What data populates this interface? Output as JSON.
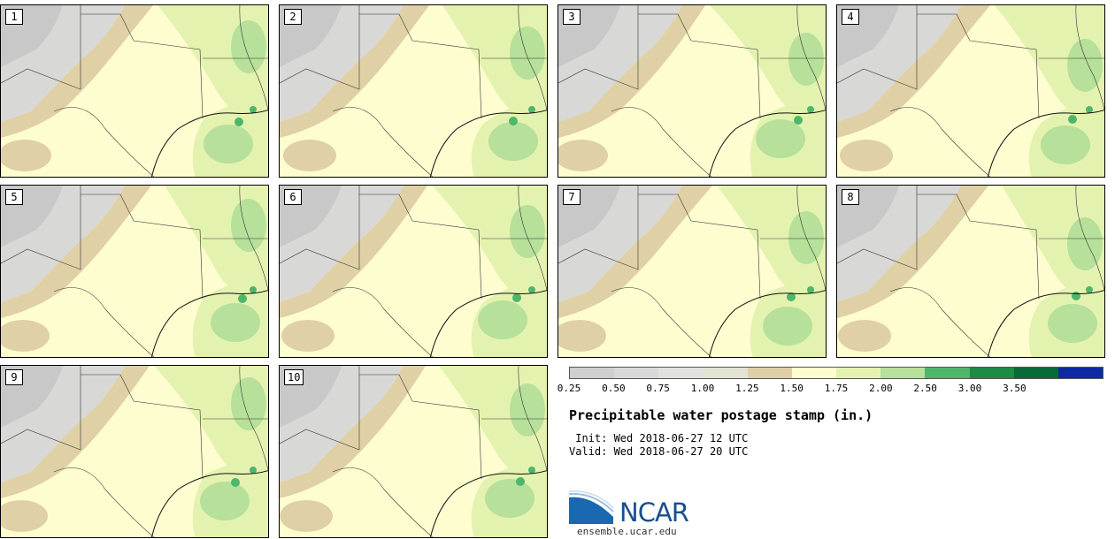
{
  "stamps": [
    {
      "label": "1"
    },
    {
      "label": "2"
    },
    {
      "label": "3"
    },
    {
      "label": "4"
    },
    {
      "label": "5"
    },
    {
      "label": "6"
    },
    {
      "label": "7"
    },
    {
      "label": "8"
    },
    {
      "label": "9"
    },
    {
      "label": "10"
    }
  ],
  "legend": {
    "colors": [
      "#cfcfcf",
      "#d9d9d9",
      "#e1e1dd",
      "#e2e2d5",
      "#dfcfa8",
      "#fdfdd0",
      "#e4f2b0",
      "#b7e09a",
      "#4eb66a",
      "#1d8a45",
      "#06693a",
      "#0c2aa4"
    ],
    "labels": [
      "0.25",
      "0.50",
      "0.75",
      "1.00",
      "1.25",
      "1.50",
      "1.75",
      "2.00",
      "2.50",
      "3.00",
      "3.50"
    ]
  },
  "title": "Precipitable water postage stamp (in.)",
  "init": " Init: Wed 2018-06-27 12 UTC",
  "valid": "Valid: Wed 2018-06-27 20 UTC",
  "logo": {
    "name": "NCAR",
    "url": "ensemble.ucar.edu"
  }
}
